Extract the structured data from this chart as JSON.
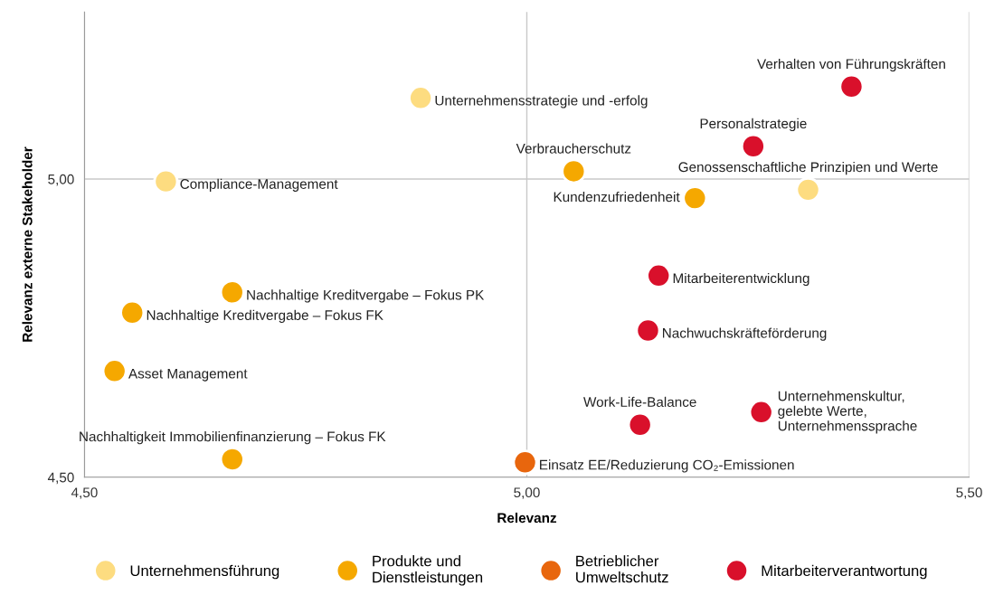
{
  "chart_data": {
    "type": "scatter",
    "xlabel": "Relevanz",
    "ylabel": "Relevanz externe Stakeholder",
    "xlim": [
      4.5,
      5.5
    ],
    "ylim": [
      4.5,
      5.28
    ],
    "xticks": [
      {
        "value": 4.5,
        "label": "4,50"
      },
      {
        "value": 5.0,
        "label": "5,00"
      },
      {
        "value": 5.5,
        "label": "5,50"
      }
    ],
    "yticks": [
      {
        "value": 4.5,
        "label": "4,50"
      },
      {
        "value": 5.0,
        "label": "5,00"
      }
    ],
    "grid": true,
    "legend": "bottom",
    "marker": "circle",
    "series": [
      {
        "name": "Unternehmensführung",
        "color": "#fddc80",
        "x": [
          4.88,
          4.592,
          5.318
        ],
        "values": [
          5.136,
          4.996,
          4.982
        ]
      },
      {
        "name": "Produkte und\nDienstleistungen",
        "color": "#f5a800",
        "x": [
          5.053,
          5.19,
          4.667,
          4.554,
          4.534,
          4.667
        ],
        "values": [
          5.013,
          4.968,
          4.81,
          4.776,
          4.678,
          4.53
        ]
      },
      {
        "name": "Betrieblicher\nUmweltschutz",
        "color": "#e8660d",
        "x": [
          4.998
        ],
        "values": [
          4.525
        ]
      },
      {
        "name": "Mitarbeiterverantwortung",
        "color": "#d9102b",
        "x": [
          5.367,
          5.256,
          5.149,
          5.137,
          5.128,
          5.265
        ],
        "values": [
          5.155,
          5.055,
          4.838,
          4.746,
          4.588,
          4.609
        ]
      }
    ],
    "annotations": [
      {
        "text": "Unternehmensstrategie und -erfolg",
        "x": 4.88,
        "y": 5.136
      },
      {
        "text": "Compliance-Management",
        "x": 4.592,
        "y": 4.996
      },
      {
        "text": "Genossenschaftliche Prinzipien und Werte",
        "x": 5.318,
        "y": 4.982
      },
      {
        "text": "Verbraucherschutz",
        "x": 5.053,
        "y": 5.013
      },
      {
        "text": "Kundenzufriedenheit",
        "x": 5.19,
        "y": 4.968
      },
      {
        "text": "Nachhaltige Kreditvergabe – Fokus PK",
        "x": 4.667,
        "y": 4.81
      },
      {
        "text": "Nachhaltige Kreditvergabe – Fokus FK",
        "x": 4.554,
        "y": 4.776
      },
      {
        "text": "Asset Management",
        "x": 4.534,
        "y": 4.678
      },
      {
        "text": "Nachhaltigkeit Immobilienfinanzierung – Fokus FK",
        "x": 4.667,
        "y": 4.53
      },
      {
        "text": "Einsatz EE/Reduzierung CO₂-Emissionen",
        "x": 4.998,
        "y": 4.525
      },
      {
        "text": "Verhalten von Führungskräften",
        "x": 5.367,
        "y": 5.155
      },
      {
        "text": "Personalstrategie",
        "x": 5.256,
        "y": 5.055
      },
      {
        "text": "Mitarbeiterentwicklung",
        "x": 5.149,
        "y": 4.838
      },
      {
        "text": "Nachwuchskräfteförderung",
        "x": 5.137,
        "y": 4.746
      },
      {
        "text": "Work-Life-Balance",
        "x": 5.128,
        "y": 4.588
      },
      {
        "text": "Unternehmenskultur,\ngelebte Werte,\nUnternehmenssprache",
        "x": 5.265,
        "y": 4.609
      }
    ]
  }
}
